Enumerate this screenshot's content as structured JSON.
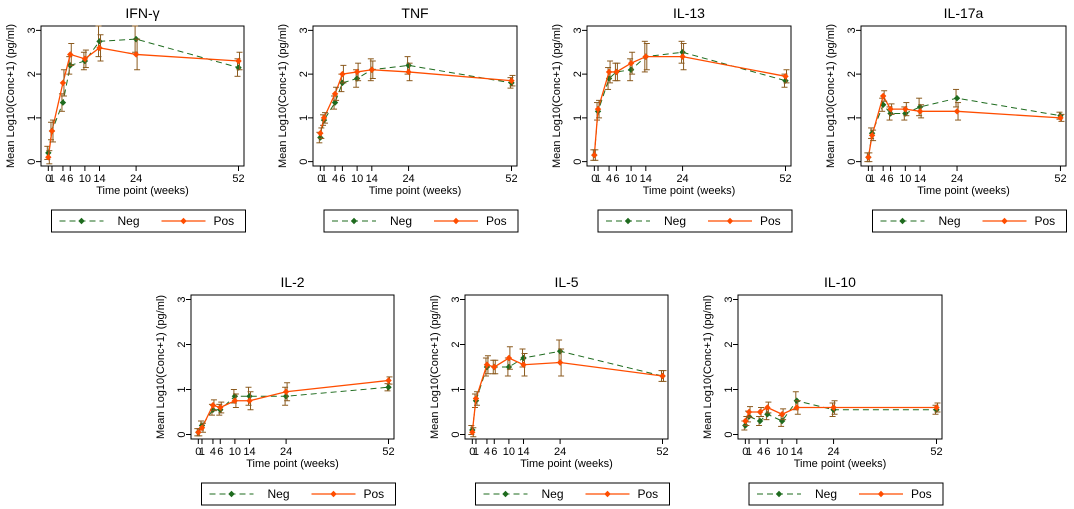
{
  "colors": {
    "neg": "#1e6b1e",
    "pos": "#ff4d00",
    "frame": "#000000",
    "error": "#8b5a1e"
  },
  "legend": {
    "neg": "Neg",
    "pos": "Pos"
  },
  "chart_data": [
    {
      "type": "line",
      "title": "IFN-γ",
      "xlabel": "Time point (weeks)",
      "ylabel": "Mean Log10(Conc+1) (pg/ml)",
      "x": [
        0,
        1,
        4,
        6,
        10,
        14,
        24,
        52
      ],
      "xticks": [
        "0",
        "1",
        "4",
        "6",
        "10",
        "14",
        "24",
        "52"
      ],
      "yticks": [
        0,
        1,
        2,
        3
      ],
      "ylim": [
        -0.1,
        3.1
      ],
      "series": [
        {
          "name": "Neg",
          "values": [
            0.2,
            0.7,
            1.35,
            2.2,
            2.3,
            2.75,
            2.8,
            2.15
          ],
          "error": [
            0.15,
            0.2,
            0.2,
            0.2,
            0.2,
            0.35,
            0.3,
            0.2
          ]
        },
        {
          "name": "Pos",
          "values": [
            0.1,
            0.7,
            1.8,
            2.45,
            2.35,
            2.6,
            2.45,
            2.3
          ],
          "error": [
            0.15,
            0.25,
            0.3,
            0.25,
            0.2,
            0.3,
            0.35,
            0.2
          ]
        }
      ]
    },
    {
      "type": "line",
      "title": "TNF",
      "xlabel": "Time point (weeks)",
      "ylabel": "Mean Log10(Conc+1) (pg/ml)",
      "x": [
        0,
        1,
        4,
        6,
        10,
        14,
        24,
        52
      ],
      "xticks": [
        "0",
        "1",
        "4",
        "6",
        "10",
        "14",
        "24",
        "52"
      ],
      "yticks": [
        0,
        1,
        2,
        3
      ],
      "ylim": [
        -0.1,
        3.1
      ],
      "series": [
        {
          "name": "Neg",
          "values": [
            0.55,
            0.95,
            1.35,
            1.8,
            1.9,
            2.1,
            2.2,
            1.8
          ],
          "error": [
            0.12,
            0.12,
            0.15,
            0.2,
            0.2,
            0.25,
            0.2,
            0.12
          ]
        },
        {
          "name": "Pos",
          "values": [
            0.65,
            1.0,
            1.55,
            2.0,
            2.05,
            2.1,
            2.05,
            1.85
          ],
          "error": [
            0.12,
            0.12,
            0.15,
            0.2,
            0.2,
            0.2,
            0.2,
            0.12
          ]
        }
      ]
    },
    {
      "type": "line",
      "title": "IL-13",
      "xlabel": "Time point (weeks)",
      "ylabel": "Mean Log10(Conc+1) (pg/ml)",
      "x": [
        0,
        1,
        4,
        6,
        10,
        14,
        24,
        52
      ],
      "xticks": [
        "0",
        "1",
        "4",
        "6",
        "10",
        "14",
        "24",
        "52"
      ],
      "yticks": [
        0,
        1,
        2,
        3
      ],
      "ylim": [
        -0.1,
        3.1
      ],
      "series": [
        {
          "name": "Neg",
          "values": [
            0.15,
            1.15,
            1.9,
            2.05,
            2.1,
            2.4,
            2.5,
            1.85
          ],
          "error": [
            0.12,
            0.2,
            0.25,
            0.2,
            0.25,
            0.35,
            0.25,
            0.15
          ]
        },
        {
          "name": "Pos",
          "values": [
            0.15,
            1.2,
            2.05,
            2.05,
            2.25,
            2.4,
            2.4,
            1.95
          ],
          "error": [
            0.12,
            0.2,
            0.25,
            0.2,
            0.25,
            0.3,
            0.3,
            0.15
          ]
        }
      ]
    },
    {
      "type": "line",
      "title": "IL-17a",
      "xlabel": "Time point (weeks)",
      "ylabel": "Mean Log10(Conc+1) (pg/ml)",
      "x": [
        0,
        1,
        4,
        6,
        10,
        14,
        24,
        52
      ],
      "xticks": [
        "0",
        "1",
        "4",
        "6",
        "10",
        "14",
        "24",
        "52"
      ],
      "yticks": [
        0,
        1,
        2,
        3
      ],
      "ylim": [
        -0.1,
        3.1
      ],
      "series": [
        {
          "name": "Neg",
          "values": [
            0.1,
            0.65,
            1.3,
            1.1,
            1.1,
            1.25,
            1.45,
            1.05
          ],
          "error": [
            0.1,
            0.12,
            0.15,
            0.15,
            0.15,
            0.2,
            0.2,
            0.08
          ]
        },
        {
          "name": "Pos",
          "values": [
            0.1,
            0.6,
            1.5,
            1.2,
            1.2,
            1.15,
            1.15,
            1.0
          ],
          "error": [
            0.1,
            0.12,
            0.12,
            0.12,
            0.15,
            0.15,
            0.2,
            0.08
          ]
        }
      ]
    },
    {
      "type": "line",
      "title": "IL-2",
      "xlabel": "Time point (weeks)",
      "ylabel": "Mean Log10(Conc+1) (pg/ml)",
      "x": [
        0,
        1,
        4,
        6,
        10,
        14,
        24,
        52
      ],
      "xticks": [
        "0",
        "1",
        "4",
        "6",
        "10",
        "14",
        "24",
        "52"
      ],
      "yticks": [
        0,
        1,
        2,
        3
      ],
      "ylim": [
        -0.1,
        3.1
      ],
      "series": [
        {
          "name": "Neg",
          "values": [
            0.05,
            0.2,
            0.55,
            0.55,
            0.85,
            0.85,
            0.85,
            1.05
          ],
          "error": [
            0.08,
            0.1,
            0.12,
            0.12,
            0.15,
            0.2,
            0.2,
            0.08
          ]
        },
        {
          "name": "Pos",
          "values": [
            0.05,
            0.15,
            0.65,
            0.6,
            0.75,
            0.75,
            0.95,
            1.2
          ],
          "error": [
            0.08,
            0.1,
            0.12,
            0.12,
            0.15,
            0.2,
            0.2,
            0.08
          ]
        }
      ]
    },
    {
      "type": "line",
      "title": "IL-5",
      "xlabel": "Time point (weeks)",
      "ylabel": "Mean Log10(Conc+1) (pg/ml)",
      "x": [
        0,
        1,
        4,
        6,
        10,
        14,
        24,
        52
      ],
      "xticks": [
        "0",
        "1",
        "4",
        "6",
        "10",
        "14",
        "24",
        "52"
      ],
      "yticks": [
        0,
        1,
        2,
        3
      ],
      "ylim": [
        -0.1,
        3.1
      ],
      "series": [
        {
          "name": "Neg",
          "values": [
            0.1,
            0.75,
            1.5,
            1.5,
            1.5,
            1.7,
            1.85,
            1.3
          ],
          "error": [
            0.1,
            0.15,
            0.2,
            0.15,
            0.2,
            0.2,
            0.25,
            0.12
          ]
        },
        {
          "name": "Pos",
          "values": [
            0.05,
            0.8,
            1.55,
            1.5,
            1.7,
            1.55,
            1.6,
            1.3
          ],
          "error": [
            0.1,
            0.15,
            0.2,
            0.15,
            0.25,
            0.25,
            0.3,
            0.12
          ]
        }
      ]
    },
    {
      "type": "line",
      "title": "IL-10",
      "xlabel": "Time point (weeks)",
      "ylabel": "Mean Log10(Conc+1) (pg/ml)",
      "x": [
        0,
        1,
        4,
        6,
        10,
        14,
        24,
        52
      ],
      "xticks": [
        "0",
        "1",
        "4",
        "6",
        "10",
        "14",
        "24",
        "52"
      ],
      "yticks": [
        0,
        1,
        2,
        3
      ],
      "ylim": [
        -0.1,
        3.1
      ],
      "series": [
        {
          "name": "Neg",
          "values": [
            0.2,
            0.4,
            0.3,
            0.45,
            0.3,
            0.75,
            0.55,
            0.55
          ],
          "error": [
            0.1,
            0.12,
            0.1,
            0.12,
            0.12,
            0.2,
            0.15,
            0.1
          ]
        },
        {
          "name": "Pos",
          "values": [
            0.3,
            0.5,
            0.5,
            0.6,
            0.45,
            0.6,
            0.6,
            0.6
          ],
          "error": [
            0.1,
            0.12,
            0.1,
            0.12,
            0.12,
            0.15,
            0.15,
            0.1
          ]
        }
      ]
    }
  ]
}
